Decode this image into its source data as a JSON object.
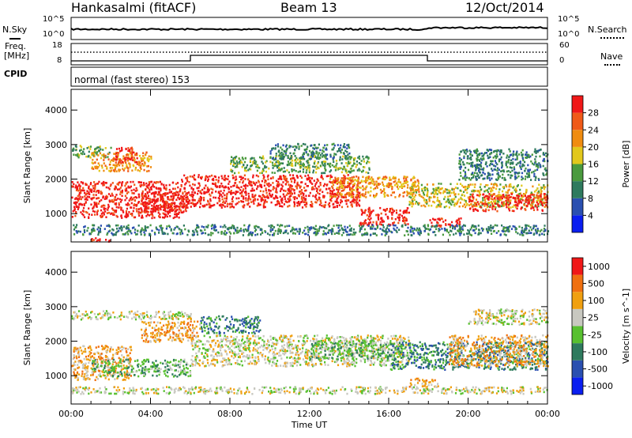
{
  "header": {
    "station": "Hankasalmi (fitACF)",
    "beam": "Beam 13",
    "date": "12/Oct/2014"
  },
  "noise_panel": {
    "left_label": "N.Sky",
    "right_label": "N.Search",
    "left_ticks": [
      "10^5",
      "10^0"
    ],
    "right_ticks": [
      "10^5",
      "10^0"
    ]
  },
  "freq_panel": {
    "left_label_1": "Freq.",
    "left_label_2": "[MHz]",
    "right_label": "Nave",
    "left_ticks": [
      "18",
      "8"
    ],
    "right_ticks": [
      "60",
      "0"
    ]
  },
  "cpid": {
    "label": "CPID",
    "program": "normal (fast stereo) 153"
  },
  "chart_data": [
    {
      "type": "heatmap",
      "name": "power",
      "xlabel": "Time UT",
      "ylabel": "Slant Range [km]",
      "x_ticks": [
        "00:00",
        "04:00",
        "08:00",
        "12:00",
        "16:00",
        "20:00",
        "00:00"
      ],
      "y_ticks": [
        1000,
        2000,
        3000,
        4000
      ],
      "xlim": [
        0,
        24
      ],
      "ylim": [
        180,
        4600
      ],
      "colorbar": {
        "label": "Power [dB]",
        "ticks": [
          4,
          8,
          12,
          16,
          20,
          24,
          28
        ],
        "colors": [
          "#0a1ef0",
          "#2a4fb0",
          "#2e7a5e",
          "#4a9a3e",
          "#e2c81c",
          "#f08c10",
          "#f05a18",
          "#f01818"
        ]
      },
      "bands": [
        {
          "t0": 0.0,
          "t1": 5.5,
          "r0": 900,
          "r1": 1950,
          "level": 26
        },
        {
          "t0": 0.0,
          "t1": 2.0,
          "r0": 2650,
          "r1": 3000,
          "level": 10
        },
        {
          "t0": 1.0,
          "t1": 4.0,
          "r0": 2250,
          "r1": 2800,
          "level": 20
        },
        {
          "t0": 2.2,
          "t1": 3.3,
          "r0": 2500,
          "r1": 2950,
          "level": 27
        },
        {
          "t0": 3.5,
          "t1": 6.0,
          "r0": 1050,
          "r1": 1650,
          "level": 26
        },
        {
          "t0": 5.5,
          "t1": 14.5,
          "r0": 1200,
          "r1": 2150,
          "level": 27
        },
        {
          "t0": 8.0,
          "t1": 15.0,
          "r0": 2200,
          "r1": 2700,
          "level": 12
        },
        {
          "t0": 10.0,
          "t1": 14.0,
          "r0": 2600,
          "r1": 3050,
          "level": 8
        },
        {
          "t0": 13.0,
          "t1": 17.5,
          "r0": 1500,
          "r1": 2100,
          "level": 20
        },
        {
          "t0": 14.5,
          "t1": 17.0,
          "r0": 700,
          "r1": 1200,
          "level": 27
        },
        {
          "t0": 17.0,
          "t1": 24.0,
          "r0": 1200,
          "r1": 1900,
          "level": 16
        },
        {
          "t0": 18.0,
          "t1": 19.6,
          "r0": 650,
          "r1": 900,
          "level": 27
        },
        {
          "t0": 20.0,
          "t1": 24.0,
          "r0": 1100,
          "r1": 1600,
          "level": 27
        },
        {
          "t0": 19.5,
          "t1": 24.0,
          "r0": 2000,
          "r1": 2900,
          "level": 8
        },
        {
          "t0": 0.0,
          "t1": 24.0,
          "r0": 400,
          "r1": 700,
          "level": 7
        },
        {
          "t0": 1.0,
          "t1": 2.0,
          "r0": 200,
          "r1": 320,
          "level": 28
        }
      ]
    },
    {
      "type": "heatmap",
      "name": "velocity",
      "xlabel": "Time UT",
      "ylabel": "Slant Range [km]",
      "x_ticks": [
        "00:00",
        "04:00",
        "08:00",
        "12:00",
        "16:00",
        "20:00",
        "00:00"
      ],
      "y_ticks": [
        1000,
        2000,
        3000,
        4000
      ],
      "xlim": [
        0,
        24
      ],
      "ylim": [
        180,
        4600
      ],
      "colorbar": {
        "label": "Velocity [m s^-1]",
        "ticks": [
          "1000",
          "500",
          "100",
          "25",
          "-25",
          "-100",
          "-500",
          "-1000"
        ],
        "colors": [
          "#0a1ef0",
          "#2a4fb0",
          "#2e7a5e",
          "#58c030",
          "#c8c8c0",
          "#f0a010",
          "#f07010",
          "#f01818"
        ]
      },
      "bands": [
        {
          "t0": 0.0,
          "t1": 6.0,
          "r0": 2650,
          "r1": 2900,
          "level": 4
        },
        {
          "t0": 3.5,
          "t1": 6.5,
          "r0": 2000,
          "r1": 2600,
          "level": 5
        },
        {
          "t0": 6.0,
          "t1": 17.0,
          "r0": 1300,
          "r1": 2200,
          "level": 4
        },
        {
          "t0": 6.5,
          "t1": 9.5,
          "r0": 2250,
          "r1": 2750,
          "level": 2
        },
        {
          "t0": 12.0,
          "t1": 16.0,
          "r0": 1500,
          "r1": 2050,
          "level": 3
        },
        {
          "t0": 0.0,
          "t1": 3.0,
          "r0": 900,
          "r1": 1900,
          "level": 5
        },
        {
          "t0": 1.0,
          "t1": 6.0,
          "r0": 1000,
          "r1": 1500,
          "level": 3
        },
        {
          "t0": 16.0,
          "t1": 24.0,
          "r0": 1200,
          "r1": 2000,
          "level": 2
        },
        {
          "t0": 19.0,
          "t1": 24.0,
          "r0": 1300,
          "r1": 2200,
          "level": 5
        },
        {
          "t0": 20.0,
          "t1": 24.0,
          "r0": 2500,
          "r1": 2950,
          "level": 4
        },
        {
          "t0": 0.0,
          "t1": 24.0,
          "r0": 500,
          "r1": 700,
          "level": 4
        },
        {
          "t0": 17.0,
          "t1": 18.5,
          "r0": 700,
          "r1": 950,
          "level": 5
        }
      ]
    }
  ]
}
